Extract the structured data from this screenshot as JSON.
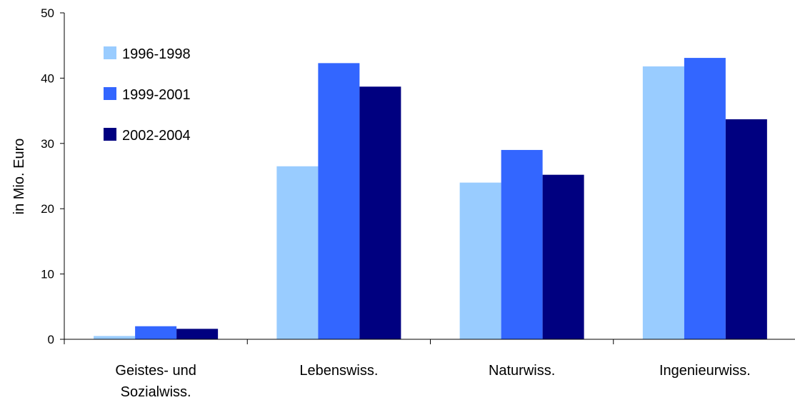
{
  "chart_data": {
    "type": "bar",
    "ylabel": "in Mio. Euro",
    "ylim": [
      0,
      50
    ],
    "yticks": [
      0,
      10,
      20,
      30,
      40,
      50
    ],
    "categories": [
      [
        "Geistes- und",
        "Sozialwiss."
      ],
      [
        "Lebenswiss."
      ],
      [
        "Naturwiss."
      ],
      [
        "Ingenieurwiss."
      ]
    ],
    "series": [
      {
        "name": "1996-1998",
        "color": "#99ccff",
        "values": [
          0.5,
          26.5,
          24.0,
          41.8
        ]
      },
      {
        "name": "1999-2001",
        "color": "#3366ff",
        "values": [
          2.0,
          42.3,
          29.0,
          43.1
        ]
      },
      {
        "name": "2002-2004",
        "color": "#000080",
        "values": [
          1.6,
          38.7,
          25.2,
          33.7
        ]
      }
    ],
    "grid": false,
    "legend_position": "top-left"
  }
}
